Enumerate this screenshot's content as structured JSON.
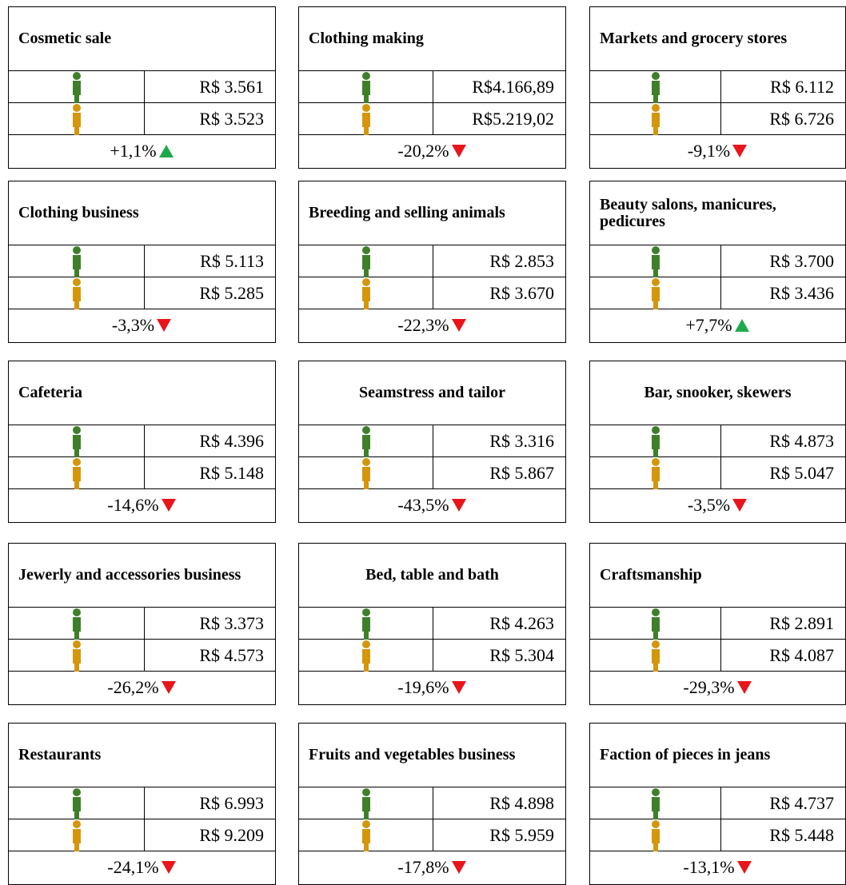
{
  "cards": [
    {
      "title": "Cosmetic sale",
      "female": "R$ 3.561",
      "male": "R$ 3.523",
      "change": "+1,1%",
      "direction": "up"
    },
    {
      "title": "Clothing making",
      "female": "R$4.166,89",
      "male": "R$5.219,02",
      "change": "-20,2%",
      "direction": "down"
    },
    {
      "title": "Markets and grocery stores",
      "female": "R$ 6.112",
      "male": "R$ 6.726",
      "change": "-9,1%",
      "direction": "down"
    },
    {
      "title": "Clothing business",
      "female": "R$ 5.113",
      "male": "R$ 5.285",
      "change": "-3,3%",
      "direction": "down"
    },
    {
      "title": "Breeding and selling animals",
      "female": "R$ 2.853",
      "male": "R$ 3.670",
      "change": "-22,3%",
      "direction": "down"
    },
    {
      "title": "Beauty salons, manicures, pedicures",
      "female": "R$ 3.700",
      "male": "R$ 3.436",
      "change": "+7,7%",
      "direction": "up"
    },
    {
      "title": "Cafeteria",
      "female": "R$ 4.396",
      "male": "R$ 5.148",
      "change": "-14,6%",
      "direction": "down"
    },
    {
      "title": "Seamstress and tailor",
      "female": "R$ 3.316",
      "male": "R$ 5.867",
      "change": "-43,5%",
      "direction": "down"
    },
    {
      "title": "Bar, snooker, skewers",
      "female": "R$ 4.873",
      "male": "R$ 5.047",
      "change": "-3,5%",
      "direction": "down"
    },
    {
      "title": "Jewerly and accessories business",
      "female": "R$ 3.373",
      "male": "R$ 4.573",
      "change": "-26,2%",
      "direction": "down"
    },
    {
      "title": "Bed, table and bath",
      "female": "R$ 4.263",
      "male": "R$ 5.304",
      "change": "-19,6%",
      "direction": "down"
    },
    {
      "title": "Craftsmanship",
      "female": "R$ 2.891",
      "male": "R$ 4.087",
      "change": "-29,3%",
      "direction": "down"
    },
    {
      "title": "Restaurants",
      "female": "R$ 6.993",
      "male": "R$ 9.209",
      "change": "-24,1%",
      "direction": "down"
    },
    {
      "title": "Fruits and vegetables business",
      "female": "R$ 4.898",
      "male": "R$ 5.959",
      "change": "-17,8%",
      "direction": "down"
    },
    {
      "title": "Faction of pieces in jeans",
      "female": "R$ 4.737",
      "male": "R$ 5.448",
      "change": "-13,1%",
      "direction": "down"
    }
  ]
}
